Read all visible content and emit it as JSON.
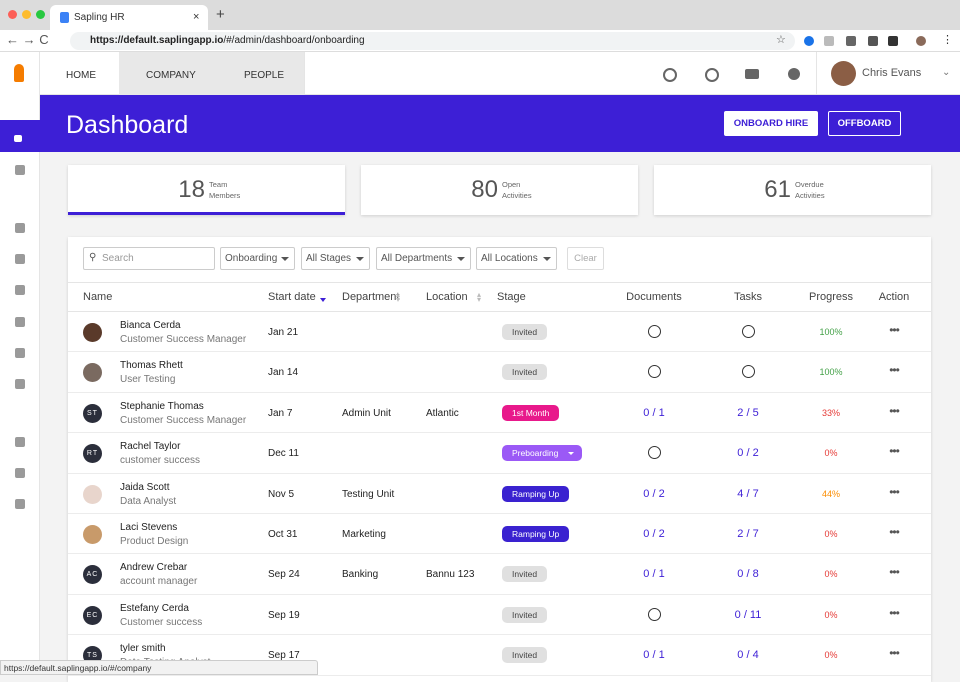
{
  "browser": {
    "tab_title": "Sapling HR",
    "url_host": "https://default.saplingapp.io",
    "url_path": "/#/admin/dashboard/onboarding",
    "status_url": "https://default.saplingapp.io/#/company"
  },
  "nav": {
    "tabs": [
      "HOME",
      "COMPANY",
      "PEOPLE"
    ],
    "user": "Chris Evans"
  },
  "header": {
    "title": "Dashboard",
    "buttons": [
      "ONBOARD HIRE",
      "OFFBOARD"
    ]
  },
  "stats": [
    {
      "value": 18,
      "label_lines": [
        "Team",
        "Members"
      ]
    },
    {
      "value": 80,
      "label_lines": [
        "Open",
        "Activities"
      ]
    },
    {
      "value": 61,
      "label_lines": [
        "Overdue",
        "Activities"
      ]
    }
  ],
  "filters": {
    "search": "Search",
    "dropdowns": [
      "Onboarding",
      "All Stages",
      "All Departments",
      "All Locations"
    ],
    "clear": "Clear"
  },
  "table": {
    "columns": [
      "Name",
      "Start date",
      "Department",
      "Location",
      "Stage",
      "Documents",
      "Tasks",
      "Progress",
      "Action"
    ],
    "rows": [
      {
        "name": "Bianca Cerda",
        "title": "Customer Success Manager",
        "initials": null,
        "start": "Jan 21",
        "department": null,
        "location": null,
        "stage": "Invited",
        "stage_color": "#e0e0e0",
        "documents": null,
        "tasks": null,
        "progress": "100%",
        "progress_color": "#43a047"
      },
      {
        "name": "Thomas Rhett",
        "title": "User Testing",
        "initials": null,
        "start": "Jan 14",
        "department": null,
        "location": null,
        "stage": "Invited",
        "stage_color": "#e0e0e0",
        "documents": null,
        "tasks": null,
        "progress": "100%",
        "progress_color": "#43a047"
      },
      {
        "name": "Stephanie Thomas",
        "title": "Customer Success Manager",
        "initials": "ST",
        "start": "Jan 7",
        "department": "Admin Unit",
        "location": "Atlantic",
        "stage": "1st Month",
        "stage_color": "#e8198b",
        "documents": "0 / 1",
        "tasks": "2 / 5",
        "progress": "33%",
        "progress_color": "#e53935"
      },
      {
        "name": "Rachel Taylor",
        "title": "customer success",
        "initials": "RT",
        "start": "Dec 11",
        "department": null,
        "location": null,
        "stage": "Preboarding",
        "stage_color": "#9b59f6",
        "stage_dropdown": true,
        "documents": null,
        "tasks": "0 / 2",
        "progress": "0%",
        "progress_color": "#e53935"
      },
      {
        "name": "Jaida Scott",
        "title": "Data Analyst",
        "initials": null,
        "start": "Nov 5",
        "department": "Testing Unit",
        "location": null,
        "stage": "Ramping Up",
        "stage_color": "#3a22d0",
        "documents": "0 / 2",
        "tasks": "4 / 7",
        "progress": "44%",
        "progress_color": "#fb8c00"
      },
      {
        "name": "Laci Stevens",
        "title": "Product Design",
        "initials": null,
        "start": "Oct 31",
        "department": "Marketing",
        "location": null,
        "stage": "Ramping Up",
        "stage_color": "#3a22d0",
        "documents": "0 / 2",
        "tasks": "2 / 7",
        "progress": "0%",
        "progress_color": "#e53935"
      },
      {
        "name": "Andrew Crebar",
        "title": "account manager",
        "initials": "AC",
        "start": "Sep 24",
        "department": "Banking",
        "location": "Bannu 123",
        "stage": "Invited",
        "stage_color": "#e0e0e0",
        "documents": "0 / 1",
        "tasks": "0 / 8",
        "progress": "0%",
        "progress_color": "#e53935"
      },
      {
        "name": "Estefany Cerda",
        "title": "Customer success",
        "initials": "EC",
        "start": "Sep 19",
        "department": null,
        "location": null,
        "stage": "Invited",
        "stage_color": "#e0e0e0",
        "documents": null,
        "tasks": "0 / 11",
        "progress": "0%",
        "progress_color": "#e53935"
      },
      {
        "name": "tyler smith",
        "title": "Data Testing Analyst",
        "initials": "TS",
        "start": "Sep 17",
        "department": null,
        "location": null,
        "stage": "Invited",
        "stage_color": "#e0e0e0",
        "documents": "0 / 1",
        "tasks": "0 / 4",
        "progress": "0%",
        "progress_color": "#e53935"
      }
    ]
  }
}
